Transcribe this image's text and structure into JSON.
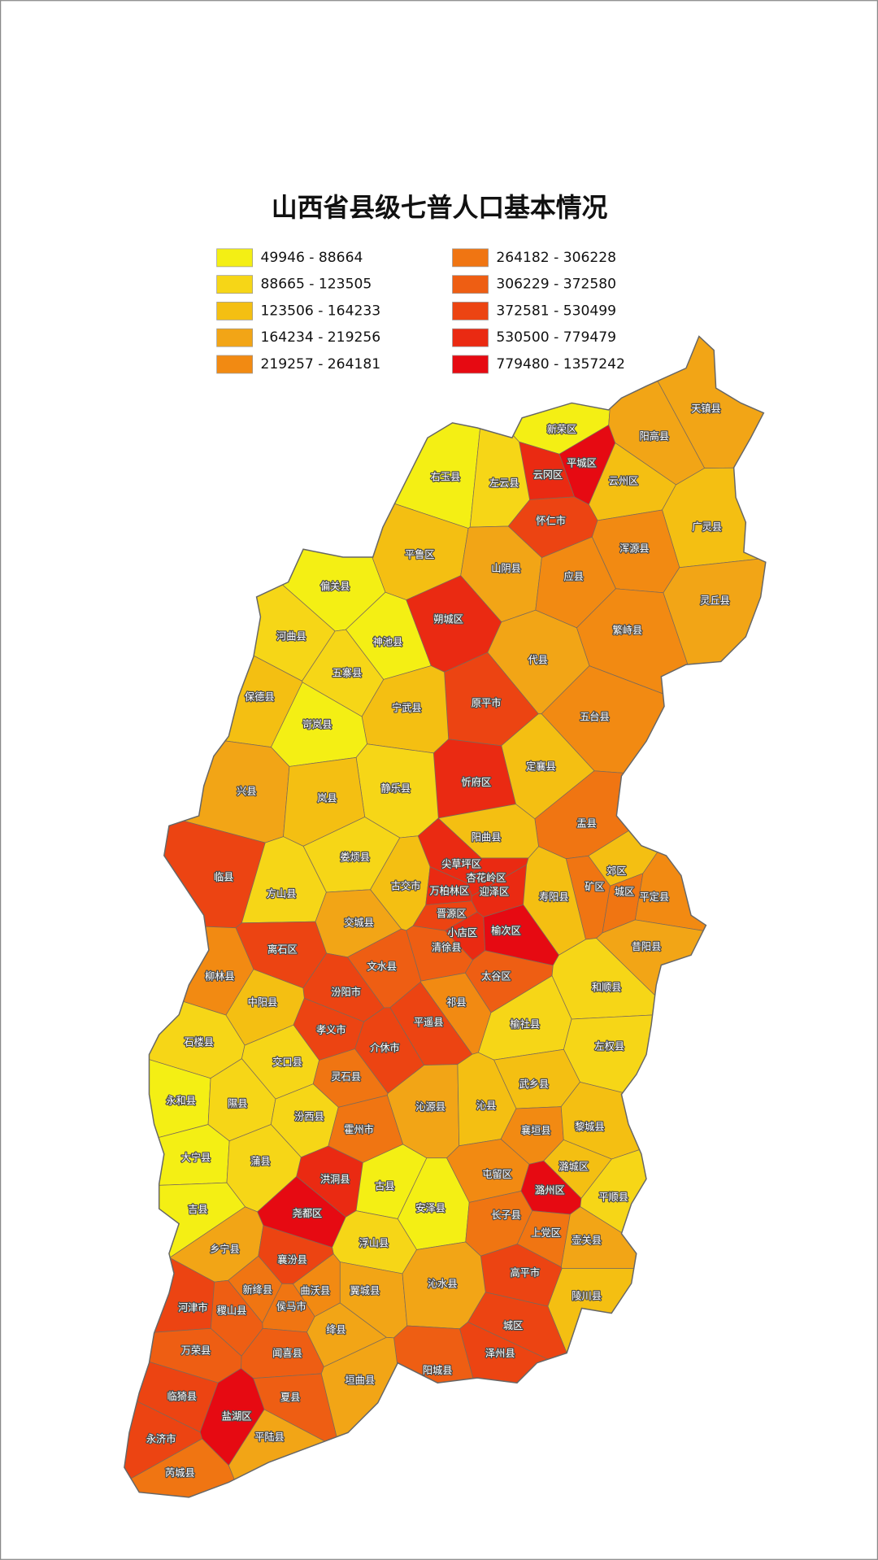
{
  "map": {
    "title": "山西省县级七普人口基本情况",
    "legend": [
      {
        "label": "49946 - 88664",
        "color": "#f4ef14"
      },
      {
        "label": "88665 - 123505",
        "color": "#f6d617"
      },
      {
        "label": "123506 - 164233",
        "color": "#f4bf12"
      },
      {
        "label": "164234 - 219256",
        "color": "#f2a516"
      },
      {
        "label": "219257 - 264181",
        "color": "#f28a12"
      },
      {
        "label": "264182 - 306228",
        "color": "#f07512"
      },
      {
        "label": "306229 - 372580",
        "color": "#ee5e13"
      },
      {
        "label": "372581 - 530499",
        "color": "#ec4412"
      },
      {
        "label": "530500 - 779479",
        "color": "#ea2a12"
      },
      {
        "label": "779480 - 1357242",
        "color": "#e60a12"
      }
    ],
    "regions": [
      {
        "name": "新荣区",
        "color": "#f4ef14"
      },
      {
        "name": "平城区",
        "color": "#e60a12"
      },
      {
        "name": "云冈区",
        "color": "#ea2a12"
      },
      {
        "name": "天镇县",
        "color": "#f2a516"
      },
      {
        "name": "阳高县",
        "color": "#f2a516"
      },
      {
        "name": "云州区",
        "color": "#f4bf12"
      },
      {
        "name": "右玉县",
        "color": "#f4ef14"
      },
      {
        "name": "左云县",
        "color": "#f6d617"
      },
      {
        "name": "怀仁市",
        "color": "#ec4412"
      },
      {
        "name": "广灵县",
        "color": "#f4bf12"
      },
      {
        "name": "浑源县",
        "color": "#f28a12"
      },
      {
        "name": "平鲁区",
        "color": "#f4bf12"
      },
      {
        "name": "山阴县",
        "color": "#f2a516"
      },
      {
        "name": "应县",
        "color": "#f28a12"
      },
      {
        "name": "偏关县",
        "color": "#f4ef14"
      },
      {
        "name": "神池县",
        "color": "#f4ef14"
      },
      {
        "name": "朔城区",
        "color": "#ea2a12"
      },
      {
        "name": "繁峙县",
        "color": "#f28a12"
      },
      {
        "name": "灵丘县",
        "color": "#f2a516"
      },
      {
        "name": "河曲县",
        "color": "#f6d617"
      },
      {
        "name": "五寨县",
        "color": "#f6d617"
      },
      {
        "name": "代县",
        "color": "#f2a516"
      },
      {
        "name": "原平市",
        "color": "#ec4412"
      },
      {
        "name": "宁武县",
        "color": "#f4bf12"
      },
      {
        "name": "保德县",
        "color": "#f4bf12"
      },
      {
        "name": "岢岚县",
        "color": "#f4ef14"
      },
      {
        "name": "五台县",
        "color": "#f28a12"
      },
      {
        "name": "定襄县",
        "color": "#f4bf12"
      },
      {
        "name": "忻府区",
        "color": "#ea2a12"
      },
      {
        "name": "静乐县",
        "color": "#f6d617"
      },
      {
        "name": "兴县",
        "color": "#f2a516"
      },
      {
        "name": "岚县",
        "color": "#f4bf12"
      },
      {
        "name": "盂县",
        "color": "#f07512"
      },
      {
        "name": "阳曲县",
        "color": "#f4bf12"
      },
      {
        "name": "娄烦县",
        "color": "#f6d617"
      },
      {
        "name": "临县",
        "color": "#ec4412"
      },
      {
        "name": "尖草坪区",
        "color": "#ea2a12"
      },
      {
        "name": "杏花岭区",
        "color": "#ea2a12"
      },
      {
        "name": "郊区",
        "color": "#f4bf12"
      },
      {
        "name": "古交市",
        "color": "#f4bf12"
      },
      {
        "name": "万柏林区",
        "color": "#ea2a12"
      },
      {
        "name": "迎泽区",
        "color": "#ea2a12"
      },
      {
        "name": "矿区",
        "color": "#f07512"
      },
      {
        "name": "城区",
        "color": "#f07512"
      },
      {
        "name": "寿阳县",
        "color": "#f4bf12"
      },
      {
        "name": "平定县",
        "color": "#f28a12"
      },
      {
        "name": "方山县",
        "color": "#f6d617"
      },
      {
        "name": "晋源区",
        "color": "#ec4412"
      },
      {
        "name": "交城县",
        "color": "#f2a516"
      },
      {
        "name": "小店区",
        "color": "#ea2a12"
      },
      {
        "name": "榆次区",
        "color": "#e60a12"
      },
      {
        "name": "清徐县",
        "color": "#ee5e13"
      },
      {
        "name": "离石区",
        "color": "#ec4412"
      },
      {
        "name": "昔阳县",
        "color": "#f2a516"
      },
      {
        "name": "文水县",
        "color": "#ee5e13"
      },
      {
        "name": "太谷区",
        "color": "#ee5e13"
      },
      {
        "name": "柳林县",
        "color": "#f28a12"
      },
      {
        "name": "和顺县",
        "color": "#f6d617"
      },
      {
        "name": "汾阳市",
        "color": "#ec4412"
      },
      {
        "name": "中阳县",
        "color": "#f4bf12"
      },
      {
        "name": "祁县",
        "color": "#f28a12"
      },
      {
        "name": "平遥县",
        "color": "#ec4412"
      },
      {
        "name": "孝义市",
        "color": "#ec4412"
      },
      {
        "name": "榆社县",
        "color": "#f6d617"
      },
      {
        "name": "左权县",
        "color": "#f6d617"
      },
      {
        "name": "介休市",
        "color": "#ec4412"
      },
      {
        "name": "石楼县",
        "color": "#f6d617"
      },
      {
        "name": "交口县",
        "color": "#f6d617"
      },
      {
        "name": "灵石县",
        "color": "#f07512"
      },
      {
        "name": "武乡县",
        "color": "#f4bf12"
      },
      {
        "name": "永和县",
        "color": "#f4ef14"
      },
      {
        "name": "隰县",
        "color": "#f6d617"
      },
      {
        "name": "沁源县",
        "color": "#f2a516"
      },
      {
        "name": "沁县",
        "color": "#f4bf12"
      },
      {
        "name": "汾西县",
        "color": "#f6d617"
      },
      {
        "name": "襄垣县",
        "color": "#f28a12"
      },
      {
        "name": "黎城县",
        "color": "#f4bf12"
      },
      {
        "name": "霍州市",
        "color": "#f07512"
      },
      {
        "name": "大宁县",
        "color": "#f4ef14"
      },
      {
        "name": "蒲县",
        "color": "#f6d617"
      },
      {
        "name": "屯留区",
        "color": "#f28a12"
      },
      {
        "name": "潞城区",
        "color": "#f4bf12"
      },
      {
        "name": "洪洞县",
        "color": "#ea2a12"
      },
      {
        "name": "潞州区",
        "color": "#e60a12"
      },
      {
        "name": "古县",
        "color": "#f4ef14"
      },
      {
        "name": "平顺县",
        "color": "#f6d617"
      },
      {
        "name": "吉县",
        "color": "#f4ef14"
      },
      {
        "name": "尧都区",
        "color": "#e60a12"
      },
      {
        "name": "安泽县",
        "color": "#f4ef14"
      },
      {
        "name": "长子县",
        "color": "#f07512"
      },
      {
        "name": "上党区",
        "color": "#f07512"
      },
      {
        "name": "壶关县",
        "color": "#f2a516"
      },
      {
        "name": "乡宁县",
        "color": "#f2a516"
      },
      {
        "name": "浮山县",
        "color": "#f6d617"
      },
      {
        "name": "襄汾县",
        "color": "#ec4412"
      },
      {
        "name": "高平市",
        "color": "#ec4412"
      },
      {
        "name": "新绛县",
        "color": "#f07512"
      },
      {
        "name": "曲沃县",
        "color": "#f28a12"
      },
      {
        "name": "翼城县",
        "color": "#f2a516"
      },
      {
        "name": "沁水县",
        "color": "#f2a516"
      },
      {
        "name": "陵川县",
        "color": "#f4bf12"
      },
      {
        "name": "河津市",
        "color": "#ec4412"
      },
      {
        "name": "稷山县",
        "color": "#ee5e13"
      },
      {
        "name": "侯马市",
        "color": "#f07512"
      },
      {
        "name": "绛县",
        "color": "#f2a516"
      },
      {
        "name": "城区",
        "color": "#ec4412"
      },
      {
        "name": "万荣县",
        "color": "#ee5e13"
      },
      {
        "name": "闻喜县",
        "color": "#ee5e13"
      },
      {
        "name": "阳城县",
        "color": "#ee5e13"
      },
      {
        "name": "泽州县",
        "color": "#ec4412"
      },
      {
        "name": "临猗县",
        "color": "#ec4412"
      },
      {
        "name": "夏县",
        "color": "#ee5e13"
      },
      {
        "name": "垣曲县",
        "color": "#f2a516"
      },
      {
        "name": "盐湖区",
        "color": "#e60a12"
      },
      {
        "name": "永济市",
        "color": "#ec4412"
      },
      {
        "name": "平陆县",
        "color": "#f2a516"
      },
      {
        "name": "芮城县",
        "color": "#f07512"
      }
    ]
  }
}
